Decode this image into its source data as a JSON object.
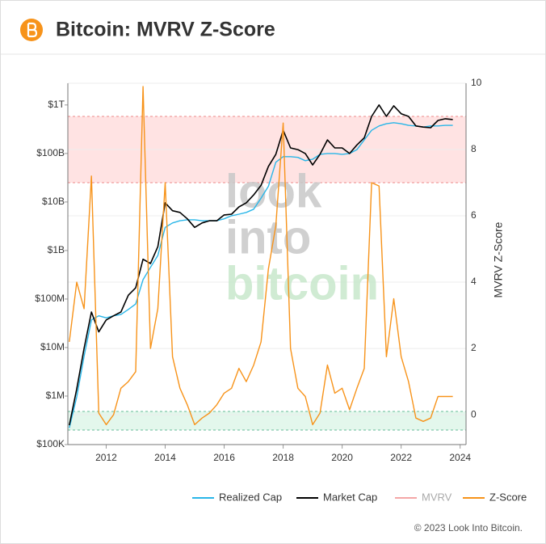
{
  "header": {
    "title": "Bitcoin: MVRV Z-Score"
  },
  "chart_data": {
    "type": "line",
    "x": [
      2010.75,
      2011.0,
      2011.25,
      2011.5,
      2011.75,
      2012.0,
      2012.25,
      2012.5,
      2012.75,
      2013.0,
      2013.25,
      2013.5,
      2013.75,
      2014.0,
      2014.25,
      2014.5,
      2014.75,
      2015.0,
      2015.25,
      2015.5,
      2015.75,
      2016.0,
      2016.25,
      2016.5,
      2016.75,
      2017.0,
      2017.25,
      2017.5,
      2017.75,
      2018.0,
      2018.25,
      2018.5,
      2018.75,
      2019.0,
      2019.25,
      2019.5,
      2019.75,
      2020.0,
      2020.25,
      2020.5,
      2020.75,
      2021.0,
      2021.25,
      2021.5,
      2021.75,
      2022.0,
      2022.25,
      2022.5,
      2022.75,
      2023.0,
      2023.25,
      2023.5,
      2023.75
    ],
    "series": [
      {
        "name": "Realized Cap",
        "color": "#29b6e8",
        "axis": "y",
        "values": [
          220000.0,
          960000.0,
          6600000.0,
          37000000.0,
          45000000.0,
          41000000.0,
          45000000.0,
          48000000.0,
          61000000.0,
          79000000.0,
          250000000.0,
          450000000.0,
          790000000.0,
          3000000000.0,
          3700000000.0,
          4100000000.0,
          4300000000.0,
          4300000000.0,
          4100000000.0,
          4100000000.0,
          4100000000.0,
          4500000000.0,
          5200000000.0,
          5600000000.0,
          6100000000.0,
          7100000000.0,
          12000000000.0,
          21000000000.0,
          66000000000.0,
          86000000000.0,
          86000000000.0,
          83000000000.0,
          71000000000.0,
          76000000000.0,
          96000000000.0,
          100000000000.0,
          100000000000.0,
          96000000000.0,
          100000000000.0,
          120000000000.0,
          190000000000.0,
          300000000000.0,
          370000000000.0,
          410000000000.0,
          430000000000.0,
          410000000000.0,
          380000000000.0,
          370000000000.0,
          350000000000.0,
          370000000000.0,
          370000000000.0,
          380000000000.0,
          380000000000.0
        ]
      },
      {
        "name": "Market Cap",
        "color": "#000000",
        "axis": "y",
        "values": [
          250000.0,
          1400000.0,
          9600000.0,
          54000000.0,
          21000000.0,
          37000000.0,
          45000000.0,
          54000000.0,
          120000000.0,
          170000000.0,
          660000000.0,
          540000000.0,
          1200000000.0,
          9600000000.0,
          6600000000.0,
          6100000000.0,
          4500000000.0,
          3000000000.0,
          3700000000.0,
          4100000000.0,
          4100000000.0,
          5400000000.0,
          5600000000.0,
          7900000000.0,
          9600000000.0,
          14000000000.0,
          22000000000.0,
          54000000000.0,
          96000000000.0,
          300000000000.0,
          130000000000.0,
          120000000000.0,
          100000000000.0,
          58000000000.0,
          96000000000.0,
          190000000000.0,
          130000000000.0,
          130000000000.0,
          100000000000.0,
          150000000000.0,
          210000000000.0,
          580000000000.0,
          1000000000000.0,
          580000000000.0,
          960000000000.0,
          660000000000.0,
          580000000000.0,
          370000000000.0,
          350000000000.0,
          340000000000.0,
          480000000000.0,
          520000000000.0,
          500000000000.0
        ]
      },
      {
        "name": "MVRV",
        "color": "#f4a6a6",
        "axis": "y2",
        "visible": false
      },
      {
        "name": "Z-Score",
        "color": "#f7931a",
        "axis": "y2",
        "values": [
          2.2,
          4.0,
          3.2,
          7.2,
          0.05,
          -0.3,
          0,
          0.8,
          1.0,
          1.3,
          9.9,
          2.0,
          3.2,
          7.0,
          1.75,
          0.8,
          0.3,
          -0.3,
          -0.1,
          0.05,
          0.3,
          0.65,
          0.8,
          1.4,
          1.0,
          1.5,
          2.2,
          4.4,
          5.7,
          8.8,
          2.0,
          0.8,
          0.55,
          -0.3,
          0.05,
          1.5,
          0.65,
          0.8,
          0.15,
          0.8,
          1.4,
          7.0,
          6.9,
          1.75,
          3.5,
          1.75,
          1.0,
          -0.1,
          -0.2,
          -0.1,
          0.55,
          0.55,
          0.55
        ]
      }
    ],
    "xlim": [
      2010.7,
      2024.2
    ],
    "xticks": [
      2012,
      2014,
      2016,
      2018,
      2020,
      2022,
      2024
    ],
    "yscale": "log",
    "ylim": [
      100000,
      2800000000000
    ],
    "yticks": [
      {
        "value": 100000,
        "label": "$100K"
      },
      {
        "value": 1000000,
        "label": "$1M"
      },
      {
        "value": 10000000,
        "label": "$10M"
      },
      {
        "value": 100000000,
        "label": "$100M"
      },
      {
        "value": 1000000000,
        "label": "$1B"
      },
      {
        "value": 10000000000,
        "label": "$10B"
      },
      {
        "value": 100000000000,
        "label": "$100B"
      },
      {
        "value": 1000000000000,
        "label": "$1T"
      }
    ],
    "y2label": "MVRV Z-Score",
    "y2lim": [
      -0.9,
      10
    ],
    "y2ticks": [
      0,
      2,
      4,
      6,
      8,
      10
    ],
    "grid": true,
    "zones": [
      {
        "range": [
          7,
          9
        ],
        "color": "#ffe3e3",
        "edge": "#e88"
      },
      {
        "range": [
          -0.46,
          0.1
        ],
        "color": "#e3f7ec",
        "edge": "#6b9"
      }
    ],
    "watermark": [
      "look",
      "into",
      "bitcoin"
    ],
    "legend": "bottom-right"
  },
  "footer": {
    "copyright": "© 2023 Look Into Bitcoin."
  }
}
